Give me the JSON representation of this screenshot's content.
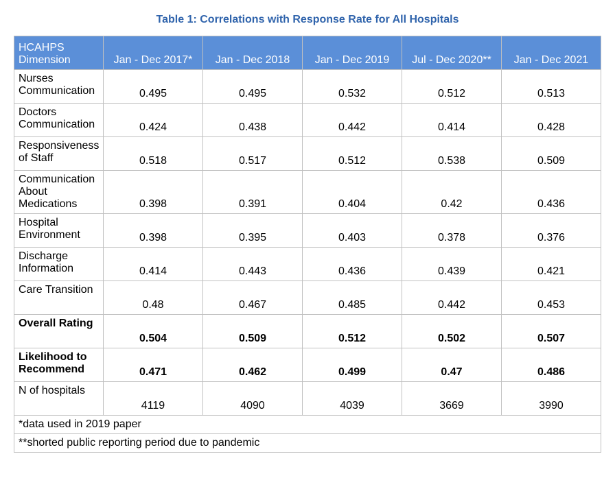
{
  "title": "Table 1: Correlations with Response Rate for All Hospitals",
  "header_bg": "#5b8fd8",
  "header_fg": "#ffffff",
  "border_color": "#c0c0c0",
  "title_color": "#3064ac",
  "columns": {
    "dim": "HCAHPS Dimension",
    "p1": "Jan - Dec 2017*",
    "p2": "Jan - Dec 2018",
    "p3": "Jan - Dec 2019",
    "p4": "Jul - Dec 2020**",
    "p5": "Jan - Dec 2021"
  },
  "rows": [
    {
      "label": "Nurses Communication",
      "v": [
        "0.495",
        "0.495",
        "0.532",
        "0.512",
        "0.513"
      ],
      "bold": false
    },
    {
      "label": "Doctors Communication",
      "v": [
        "0.424",
        "0.438",
        "0.442",
        "0.414",
        "0.428"
      ],
      "bold": false
    },
    {
      "label": "Responsiveness of Staff",
      "v": [
        "0.518",
        "0.517",
        "0.512",
        "0.538",
        "0.509"
      ],
      "bold": false
    },
    {
      "label": "Communication About Medications",
      "v": [
        "0.398",
        "0.391",
        "0.404",
        "0.42",
        "0.436"
      ],
      "bold": false
    },
    {
      "label": "Hospital Environment",
      "v": [
        "0.398",
        "0.395",
        "0.403",
        "0.378",
        "0.376"
      ],
      "bold": false
    },
    {
      "label": "Discharge Information",
      "v": [
        "0.414",
        "0.443",
        "0.436",
        "0.439",
        "0.421"
      ],
      "bold": false
    },
    {
      "label": "Care Transition",
      "v": [
        "0.48",
        "0.467",
        "0.485",
        "0.442",
        "0.453"
      ],
      "bold": false
    },
    {
      "label": "Overall Rating",
      "v": [
        "0.504",
        "0.509",
        "0.512",
        "0.502",
        "0.507"
      ],
      "bold": true
    },
    {
      "label": "Likelihood to Recommend",
      "v": [
        "0.471",
        "0.462",
        "0.499",
        "0.47",
        "0.486"
      ],
      "bold": true
    },
    {
      "label": "N of hospitals",
      "v": [
        "4119",
        "4090",
        "4039",
        "3669",
        "3990"
      ],
      "bold": false
    }
  ],
  "footnotes": [
    "*data used in 2019 paper",
    "**shorted public reporting period due to pandemic"
  ]
}
